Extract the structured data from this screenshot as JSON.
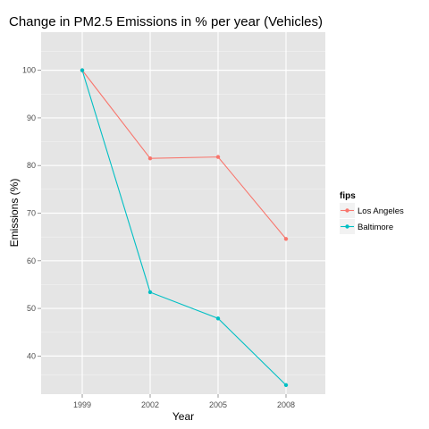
{
  "chart_data": {
    "type": "line",
    "title": "Change in PM2.5 Emissions in % per year (Vehicles)",
    "xlabel": "Year",
    "ylabel": "Emissions (%)",
    "x": [
      "1999",
      "2002",
      "2005",
      "2008"
    ],
    "ylim": [
      32,
      108
    ],
    "yticks": [
      40,
      50,
      60,
      70,
      80,
      90,
      100
    ],
    "grid": true,
    "legend": {
      "title": "fips",
      "placement": "right"
    },
    "series": [
      {
        "name": "Los Angeles",
        "color": "#F8766D",
        "values": [
          100,
          81.5,
          81.8,
          64.6
        ]
      },
      {
        "name": "Baltimore",
        "color": "#00BFC4",
        "values": [
          100,
          53.4,
          47.9,
          33.9
        ]
      }
    ]
  }
}
